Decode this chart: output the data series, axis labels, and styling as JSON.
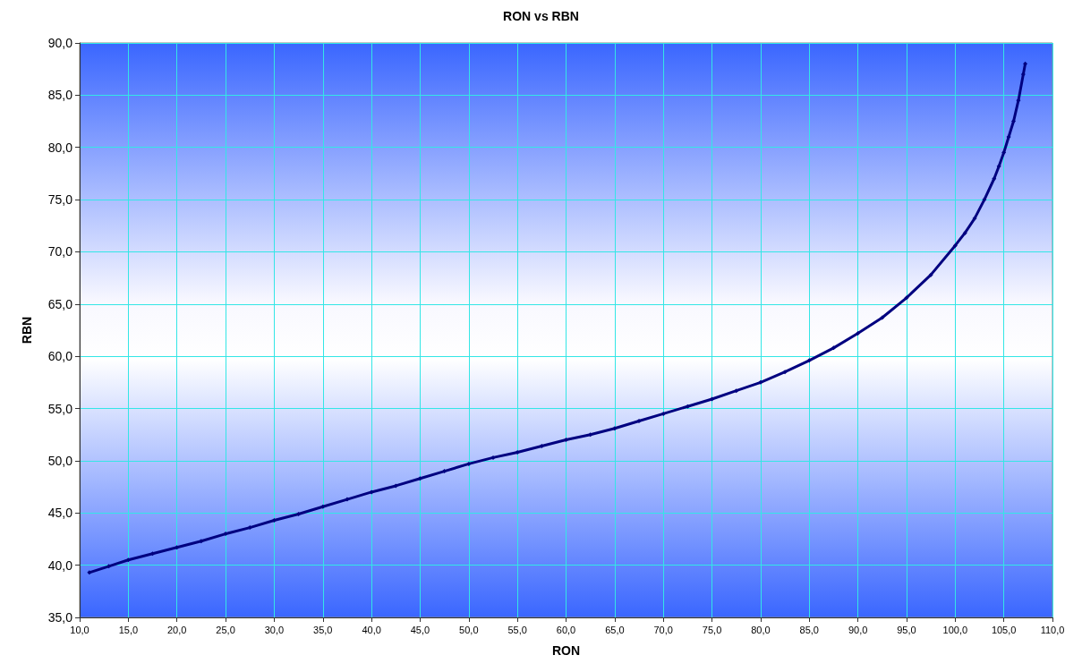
{
  "chart_data": {
    "type": "line",
    "title": "RON vs RBN",
    "xlabel": "RON",
    "ylabel": "RBN",
    "x": [
      11,
      13,
      15,
      17.5,
      20,
      22.5,
      25,
      27.5,
      30,
      32.5,
      35,
      37.5,
      40,
      42.5,
      45,
      47.5,
      50,
      52.5,
      55,
      57.5,
      60,
      62.5,
      65,
      67.5,
      70,
      72.5,
      75,
      77.5,
      80,
      82.5,
      85,
      87.5,
      90,
      92.5,
      95,
      97.5,
      100,
      101,
      102,
      103,
      104,
      104.5,
      105,
      105.5,
      106,
      106.5,
      107,
      107.2
    ],
    "series": [
      {
        "color": "#000080",
        "values": [
          39.3,
          39.9,
          40.5,
          41.1,
          41.7,
          42.3,
          43.0,
          43.6,
          44.3,
          44.9,
          45.6,
          46.3,
          47.0,
          47.6,
          48.3,
          49.0,
          49.7,
          50.3,
          50.8,
          51.4,
          52.0,
          52.5,
          53.1,
          53.8,
          54.5,
          55.2,
          55.9,
          56.7,
          57.5,
          58.5,
          59.6,
          60.8,
          62.2,
          63.7,
          65.6,
          67.8,
          70.6,
          71.8,
          73.2,
          75.0,
          77.0,
          78.2,
          79.5,
          81.0,
          82.5,
          84.5,
          87.0,
          88.0
        ]
      }
    ],
    "xlim": [
      10,
      110
    ],
    "xticks": [
      {
        "value": 10,
        "label": "10,0"
      },
      {
        "value": 15,
        "label": "15,0"
      },
      {
        "value": 20,
        "label": "20,0"
      },
      {
        "value": 25,
        "label": "25,0"
      },
      {
        "value": 30,
        "label": "30,0"
      },
      {
        "value": 35,
        "label": "35,0"
      },
      {
        "value": 40,
        "label": "40,0"
      },
      {
        "value": 45,
        "label": "45,0"
      },
      {
        "value": 50,
        "label": "50,0"
      },
      {
        "value": 55,
        "label": "55,0"
      },
      {
        "value": 60,
        "label": "60,0"
      },
      {
        "value": 65,
        "label": "65,0"
      },
      {
        "value": 70,
        "label": "70,0"
      },
      {
        "value": 75,
        "label": "75,0"
      },
      {
        "value": 80,
        "label": "80,0"
      },
      {
        "value": 85,
        "label": "85,0"
      },
      {
        "value": 90,
        "label": "90,0"
      },
      {
        "value": 95,
        "label": "95,0"
      },
      {
        "value": 100,
        "label": "100,0"
      },
      {
        "value": 105,
        "label": "105,0"
      },
      {
        "value": 110,
        "label": "110,0"
      }
    ],
    "ylim": [
      35,
      90
    ],
    "yticks": [
      {
        "value": 35,
        "label": "35,0"
      },
      {
        "value": 40,
        "label": "40,0"
      },
      {
        "value": 45,
        "label": "45,0"
      },
      {
        "value": 50,
        "label": "50,0"
      },
      {
        "value": 55,
        "label": "55,0"
      },
      {
        "value": 60,
        "label": "60,0"
      },
      {
        "value": 65,
        "label": "65,0"
      },
      {
        "value": 70,
        "label": "70,0"
      },
      {
        "value": 75,
        "label": "75,0"
      },
      {
        "value": 80,
        "label": "80,0"
      },
      {
        "value": 85,
        "label": "85,0"
      },
      {
        "value": 90,
        "label": "90,0"
      }
    ],
    "grid": true,
    "marker": "diamond",
    "line_style": "solid"
  }
}
